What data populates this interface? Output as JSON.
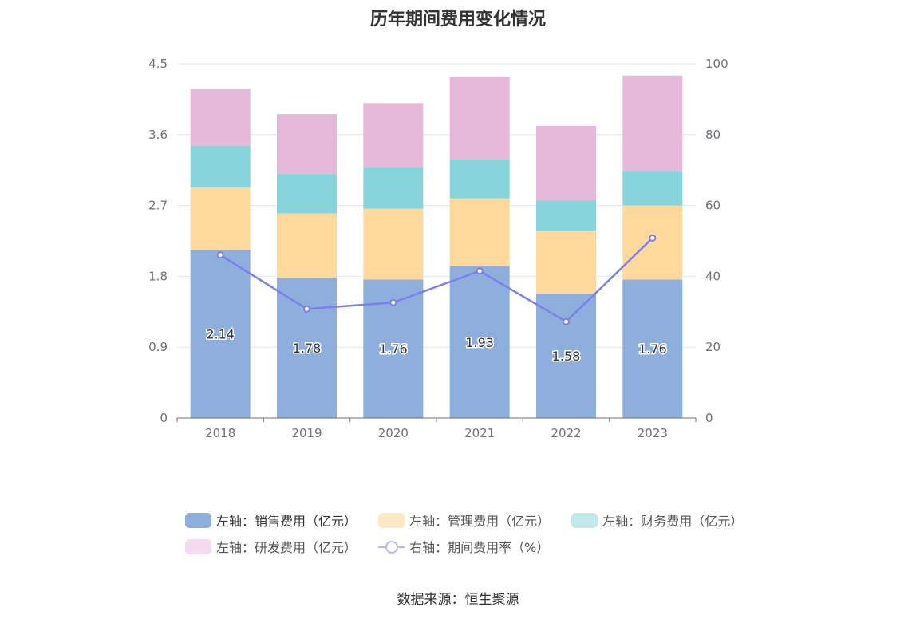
{
  "chart_data": {
    "type": "bar",
    "title": "历年期间费用变化情况",
    "categories": [
      "2018",
      "2019",
      "2020",
      "2021",
      "2022",
      "2023"
    ],
    "stacked": true,
    "y_left": {
      "min": 0,
      "max": 4.5,
      "ticks": [
        "0",
        "0.9",
        "1.8",
        "2.7",
        "3.6",
        "4.5"
      ]
    },
    "y_right": {
      "min": 0,
      "max": 100,
      "ticks": [
        "0",
        "20",
        "40",
        "60",
        "80",
        "100"
      ]
    },
    "series": [
      {
        "name": "左轴：销售费用（亿元）",
        "type": "bar",
        "axis": "left",
        "color": "#8eaedb",
        "values": [
          2.14,
          1.78,
          1.76,
          1.93,
          1.58,
          1.76
        ],
        "labels": [
          "2.14",
          "1.78",
          "1.76",
          "1.93",
          "1.58",
          "1.76"
        ]
      },
      {
        "name": "左轴：管理费用（亿元）",
        "type": "bar",
        "axis": "left",
        "color": "#fed99b",
        "values": [
          0.79,
          0.82,
          0.9,
          0.86,
          0.8,
          0.94
        ]
      },
      {
        "name": "左轴：财务费用（亿元）",
        "type": "bar",
        "axis": "left",
        "color": "#87d5da",
        "values": [
          0.53,
          0.5,
          0.53,
          0.5,
          0.39,
          0.44
        ]
      },
      {
        "name": "左轴：研发费用（亿元）",
        "type": "bar",
        "axis": "left",
        "color": "#e6b8da",
        "values": [
          0.72,
          0.76,
          0.81,
          1.05,
          0.94,
          1.21
        ]
      },
      {
        "name": "右轴：期间费用率（%）",
        "type": "line",
        "axis": "right",
        "color": "#7b7ff0",
        "values": [
          46.0,
          30.8,
          32.6,
          41.5,
          27.2,
          50.8
        ]
      }
    ],
    "grid": true,
    "legend_position": "bottom"
  },
  "legend_colors": [
    "#8eaedb",
    "#fde8c6",
    "#c2e9ec",
    "#f4dbee"
  ],
  "source": "数据来源：恒生聚源"
}
